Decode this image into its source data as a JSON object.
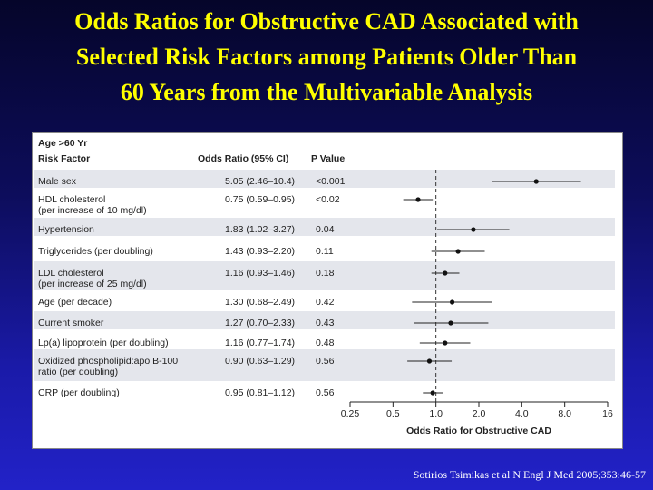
{
  "slide": {
    "title_lines": [
      "Odds Ratios for Obstructive CAD Associated with",
      "Selected Risk Factors among Patients Older Than",
      "60 Years from the Multivariable Analysis"
    ],
    "citation": "Sotirios Tsimikas et al N Engl J Med 2005;353:46-57",
    "title_color": "#ffff00"
  },
  "chart_data": {
    "type": "forest",
    "group_label": "Age >60 Yr",
    "column_headers": {
      "factor": "Risk Factor",
      "or": "Odds Ratio (95% CI)",
      "p": "P Value"
    },
    "xlabel": "Odds Ratio for Obstructive CAD",
    "x_scale": "log2",
    "xlim": [
      0.25,
      16
    ],
    "x_ticks": [
      "0.25",
      "0.5",
      "1.0",
      "2.0",
      "4.0",
      "8.0",
      "16"
    ],
    "reference_line": 1.0,
    "rows": [
      {
        "factor": [
          "Male sex"
        ],
        "or_text": "5.05 (2.46–10.4)",
        "p": "<0.001",
        "or": 5.05,
        "lo": 2.46,
        "hi": 10.4
      },
      {
        "factor": [
          "HDL cholesterol",
          "(per increase of 10 mg/dl)"
        ],
        "or_text": "0.75 (0.59–0.95)",
        "p": "<0.02",
        "or": 0.75,
        "lo": 0.59,
        "hi": 0.95
      },
      {
        "factor": [
          "Hypertension"
        ],
        "or_text": "1.83 (1.02–3.27)",
        "p": "0.04",
        "or": 1.83,
        "lo": 1.02,
        "hi": 3.27
      },
      {
        "factor": [
          "Triglycerides (per doubling)"
        ],
        "or_text": "1.43 (0.93–2.20)",
        "p": "0.11",
        "or": 1.43,
        "lo": 0.93,
        "hi": 2.2
      },
      {
        "factor": [
          "LDL cholesterol",
          "(per increase of 25 mg/dl)"
        ],
        "or_text": "1.16 (0.93–1.46)",
        "p": "0.18",
        "or": 1.16,
        "lo": 0.93,
        "hi": 1.46
      },
      {
        "factor": [
          "Age (per decade)"
        ],
        "or_text": "1.30 (0.68–2.49)",
        "p": "0.42",
        "or": 1.3,
        "lo": 0.68,
        "hi": 2.49
      },
      {
        "factor": [
          "Current smoker"
        ],
        "or_text": "1.27 (0.70–2.33)",
        "p": "0.43",
        "or": 1.27,
        "lo": 0.7,
        "hi": 2.33
      },
      {
        "factor": [
          "Lp(a) lipoprotein (per doubling)"
        ],
        "or_text": "1.16 (0.77–1.74)",
        "p": "0.48",
        "or": 1.16,
        "lo": 0.77,
        "hi": 1.74
      },
      {
        "factor": [
          "Oxidized phospholipid:apo B-100",
          "ratio (per doubling)"
        ],
        "or_text": "0.90 (0.63–1.29)",
        "p": "0.56",
        "or": 0.9,
        "lo": 0.63,
        "hi": 1.29
      },
      {
        "factor": [
          "CRP (per doubling)"
        ],
        "or_text": "0.95 (0.81–1.12)",
        "p": "0.56",
        "or": 0.95,
        "lo": 0.81,
        "hi": 1.12
      }
    ]
  }
}
